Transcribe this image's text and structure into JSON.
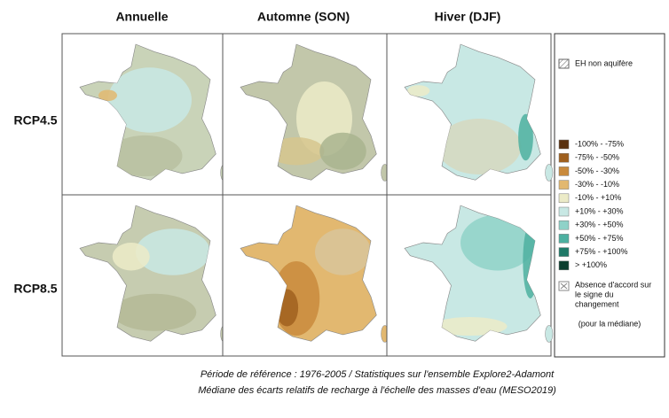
{
  "columns": [
    "Annuelle",
    "Automne (SON)",
    "Hiver (DJF)"
  ],
  "rows": [
    "RCP4.5",
    "RCP8.5"
  ],
  "legend": {
    "hatch_label": "EH non aquifère",
    "items": [
      {
        "label": "-100% - -75%",
        "color": "#5a3210"
      },
      {
        "label": "-75% - -50%",
        "color": "#a0601e"
      },
      {
        "label": "-50% - -30%",
        "color": "#c98a3c"
      },
      {
        "label": "-30% - -10%",
        "color": "#e2b870"
      },
      {
        "label": "-10% - +10%",
        "color": "#ecebc8"
      },
      {
        "label": "+10% - +30%",
        "color": "#c8e8e4"
      },
      {
        "label": "+30% - +50%",
        "color": "#8fd2c8"
      },
      {
        "label": "+50% - +75%",
        "color": "#4db0a0"
      },
      {
        "label": "+75% - +100%",
        "color": "#1f7a68"
      },
      {
        "label": "> +100%",
        "color": "#0b3d2e"
      }
    ],
    "disagreement_label": [
      "Absence d'accord sur",
      "le signe du",
      "changement"
    ],
    "note": "(pour la médiane)"
  },
  "caption": [
    "Période de référence : 1976-2005 / Statistiques sur l'ensemble Explore2-Adamont",
    "Médiane des écarts relatifs de recharge à l'échelle des masses d'eau (MESO2019)"
  ]
}
